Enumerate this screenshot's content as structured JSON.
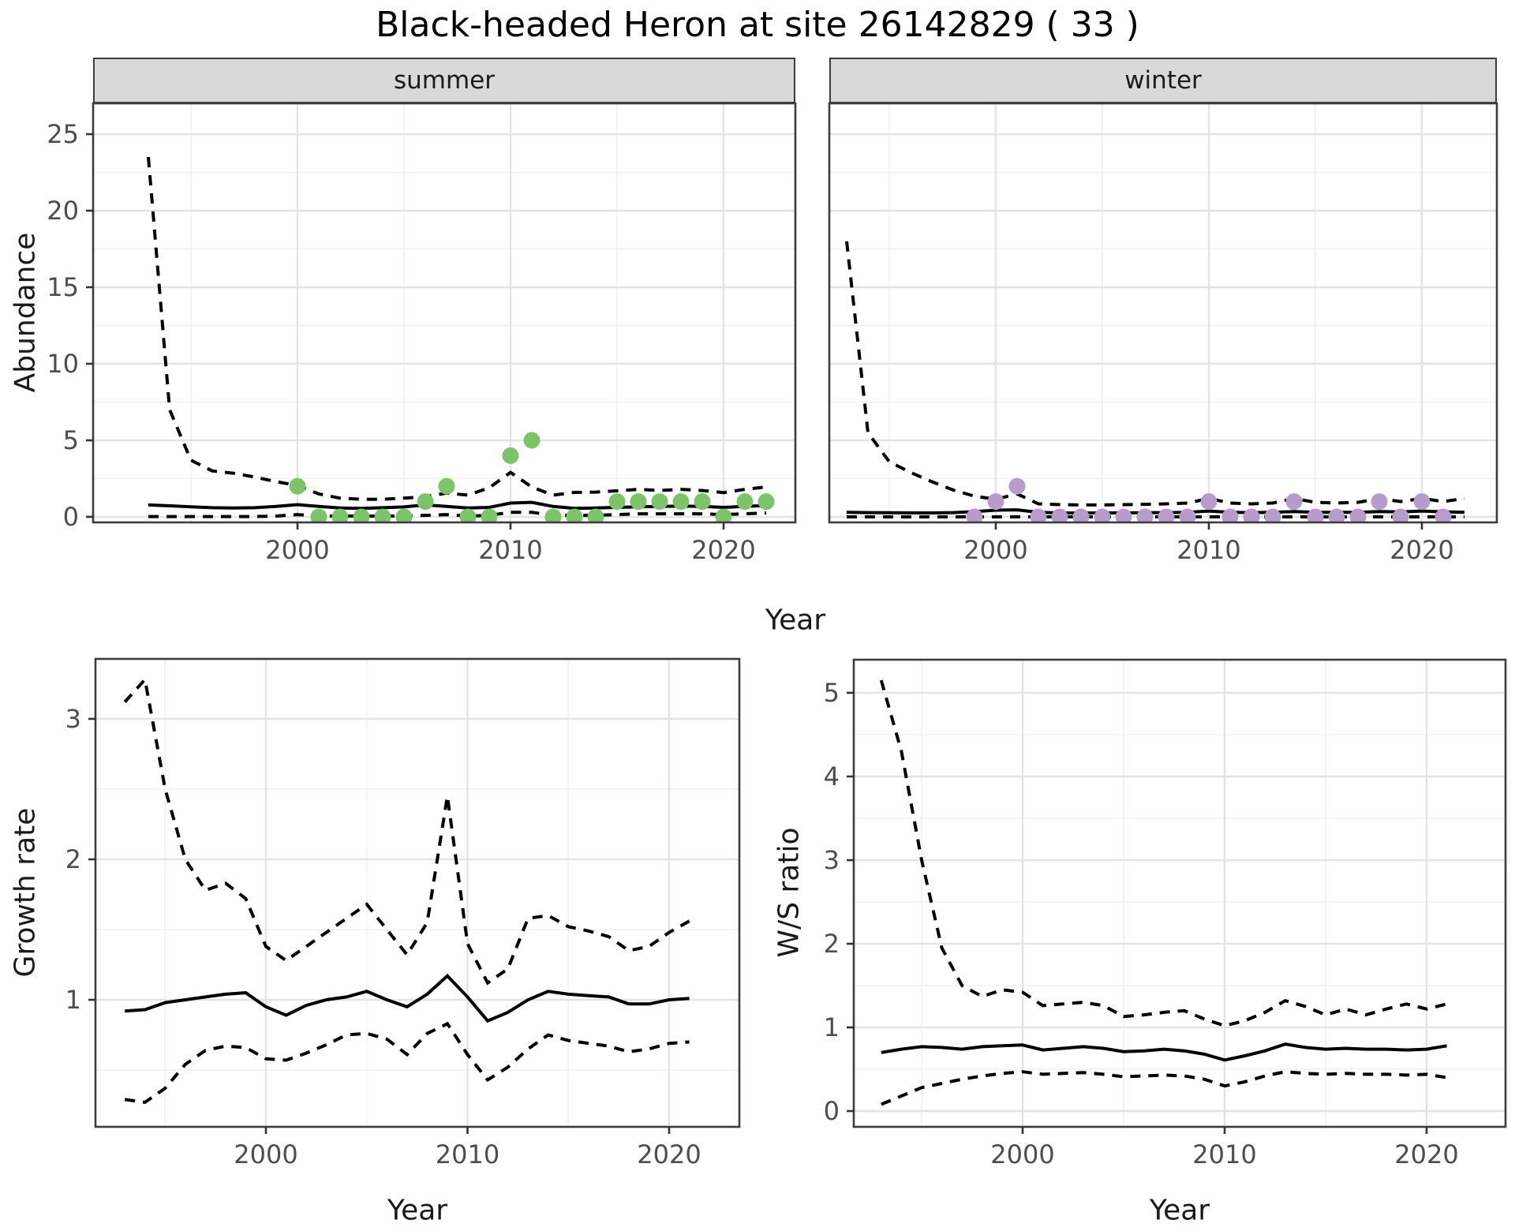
{
  "title": "Black-headed Heron at site 26142829 ( 33 )",
  "facet_labels": {
    "summer": "summer",
    "winter": "winter"
  },
  "axis_titles": {
    "abundance": "Abundance",
    "year_top": "Year",
    "growth": "Growth rate",
    "ws": "W/S ratio",
    "year_bottom_left": "Year",
    "year_bottom_right": "Year"
  },
  "colors": {
    "summer_point": "#7CC36A",
    "winter_point": "#B79CCB",
    "line": "#000000",
    "grid_major": "#E3E3E3",
    "grid_minor": "#F0F0F0",
    "strip_bg": "#D9D9D9",
    "panel_border": "#3C3C3C",
    "tick_text": "#4D4D4D"
  },
  "chart_data": [
    {
      "id": "summer",
      "type": "line",
      "title": "summer",
      "xlabel": "Year",
      "ylabel": "Abundance",
      "xlim": [
        1990.4,
        2023.4
      ],
      "ylim": [
        -0.9,
        27.0
      ],
      "grid": "on",
      "legend": "none",
      "x_major": [
        2000,
        2010,
        2020
      ],
      "x_minor": [
        1995,
        2005,
        2015
      ],
      "y_major": [
        0,
        5,
        10,
        15,
        20,
        25
      ],
      "y_minor": [
        2.5,
        7.5,
        12.5,
        17.5,
        22.5
      ],
      "x_tick_labels": [
        "2000",
        "2010",
        "2020"
      ],
      "y_tick_labels": [
        "0",
        "5",
        "10",
        "15",
        "20",
        "25"
      ],
      "years": [
        1993,
        1994,
        1995,
        1996,
        1997,
        1998,
        1999,
        2000,
        2001,
        2002,
        2003,
        2004,
        2005,
        2006,
        2007,
        2008,
        2009,
        2010,
        2011,
        2012,
        2013,
        2014,
        2015,
        2016,
        2017,
        2018,
        2019,
        2020,
        2021,
        2022
      ],
      "median": [
        0.78,
        0.72,
        0.66,
        0.6,
        0.58,
        0.6,
        0.68,
        0.8,
        0.68,
        0.58,
        0.55,
        0.6,
        0.65,
        0.78,
        0.68,
        0.58,
        0.62,
        0.9,
        0.95,
        0.68,
        0.55,
        0.58,
        0.62,
        0.66,
        0.68,
        0.7,
        0.68,
        0.62,
        0.68,
        0.74
      ],
      "upper": [
        23.5,
        7.0,
        3.7,
        3.0,
        2.85,
        2.6,
        2.3,
        2.05,
        1.5,
        1.22,
        1.15,
        1.15,
        1.22,
        1.32,
        1.55,
        1.42,
        1.9,
        2.9,
        1.95,
        1.42,
        1.6,
        1.62,
        1.7,
        1.8,
        1.72,
        1.8,
        1.72,
        1.58,
        1.8,
        1.95
      ],
      "lower": [
        0.02,
        0.02,
        0.02,
        0.02,
        0.02,
        0.02,
        0.05,
        0.15,
        0.05,
        0.05,
        0.05,
        0.05,
        0.05,
        0.1,
        0.15,
        0.05,
        0.1,
        0.3,
        0.3,
        0.1,
        0.1,
        0.1,
        0.15,
        0.2,
        0.2,
        0.2,
        0.2,
        0.15,
        0.2,
        0.25
      ],
      "points": {
        "color_key": "summer_point",
        "years": [
          2000,
          2001,
          2002,
          2003,
          2004,
          2005,
          2006,
          2007,
          2008,
          2009,
          2010,
          2011,
          2012,
          2013,
          2014,
          2015,
          2016,
          2017,
          2018,
          2019,
          2020,
          2021,
          2022
        ],
        "values": [
          2,
          0,
          0,
          0,
          0,
          0,
          1,
          2,
          0,
          0,
          4,
          5,
          0,
          0,
          0,
          1,
          1,
          1,
          1,
          1,
          0,
          1,
          1
        ]
      }
    },
    {
      "id": "winter",
      "type": "line",
      "title": "winter",
      "xlabel": "Year",
      "ylabel": "Abundance",
      "xlim": [
        1992.2,
        2023.5
      ],
      "ylim": [
        -0.9,
        27.0
      ],
      "grid": "on",
      "legend": "none",
      "x_major": [
        2000,
        2010,
        2020
      ],
      "x_minor": [
        1995,
        2005,
        2015
      ],
      "y_major": [
        0,
        5,
        10,
        15,
        20,
        25
      ],
      "y_minor": [
        2.5,
        7.5,
        12.5,
        17.5,
        22.5
      ],
      "x_tick_labels": [
        "2000",
        "2010",
        "2020"
      ],
      "y_tick_labels": [],
      "years": [
        1993,
        1994,
        1995,
        1996,
        1997,
        1998,
        1999,
        2000,
        2001,
        2002,
        2003,
        2004,
        2005,
        2006,
        2007,
        2008,
        2009,
        2010,
        2011,
        2012,
        2013,
        2014,
        2015,
        2016,
        2017,
        2018,
        2019,
        2020,
        2021,
        2022
      ],
      "median": [
        0.3,
        0.28,
        0.27,
        0.26,
        0.26,
        0.28,
        0.34,
        0.44,
        0.46,
        0.3,
        0.26,
        0.25,
        0.26,
        0.26,
        0.27,
        0.28,
        0.3,
        0.38,
        0.3,
        0.28,
        0.3,
        0.35,
        0.3,
        0.3,
        0.3,
        0.35,
        0.32,
        0.38,
        0.33,
        0.3
      ],
      "upper": [
        18.0,
        5.5,
        3.6,
        2.9,
        2.3,
        1.75,
        1.35,
        1.15,
        1.5,
        0.85,
        0.8,
        0.78,
        0.78,
        0.8,
        0.82,
        0.85,
        0.9,
        1.2,
        0.9,
        0.85,
        0.9,
        1.2,
        0.95,
        0.9,
        0.95,
        1.2,
        1.0,
        1.2,
        1.0,
        1.2
      ],
      "lower": [
        0,
        0,
        0,
        0,
        0,
        0,
        0,
        0,
        0,
        0,
        0,
        0,
        0,
        0,
        0,
        0,
        0,
        0,
        0,
        0,
        0,
        0,
        0,
        0,
        0,
        0,
        0,
        0,
        0,
        0
      ],
      "points": {
        "color_key": "winter_point",
        "years": [
          1999,
          2000,
          2001,
          2002,
          2003,
          2004,
          2005,
          2006,
          2007,
          2008,
          2009,
          2010,
          2011,
          2012,
          2013,
          2014,
          2015,
          2016,
          2017,
          2018,
          2019,
          2020,
          2021
        ],
        "values": [
          0,
          1,
          2,
          0,
          0,
          0,
          0,
          0,
          0,
          0,
          0,
          1,
          0,
          0,
          0,
          1,
          0,
          0,
          0,
          1,
          0,
          1,
          0
        ]
      }
    },
    {
      "id": "growth",
      "type": "line",
      "title": "",
      "xlabel": "Year",
      "ylabel": "Growth rate",
      "xlim": [
        1991.5,
        2023.5
      ],
      "ylim": [
        0.1,
        3.43
      ],
      "grid": "on",
      "legend": "none",
      "x_major": [
        2000,
        2010,
        2020
      ],
      "x_minor": [
        1995,
        2005,
        2015
      ],
      "y_major": [
        1,
        2,
        3
      ],
      "y_minor": [
        0.5,
        1.5,
        2.5
      ],
      "x_tick_labels": [
        "2000",
        "2010",
        "2020"
      ],
      "y_tick_labels": [
        "1",
        "2",
        "3"
      ],
      "years": [
        1993,
        1994,
        1995,
        1996,
        1997,
        1998,
        1999,
        2000,
        2001,
        2002,
        2003,
        2004,
        2005,
        2006,
        2007,
        2008,
        2009,
        2010,
        2011,
        2012,
        2013,
        2014,
        2015,
        2016,
        2017,
        2018,
        2019,
        2020,
        2021
      ],
      "median": [
        0.92,
        0.93,
        0.98,
        1.0,
        1.02,
        1.04,
        1.05,
        0.95,
        0.89,
        0.96,
        1.0,
        1.02,
        1.06,
        1.0,
        0.95,
        1.04,
        1.17,
        1.02,
        0.85,
        0.91,
        1.0,
        1.06,
        1.04,
        1.03,
        1.02,
        0.97,
        0.97,
        1.0,
        1.01
      ],
      "upper": [
        3.12,
        3.28,
        2.5,
        2.0,
        1.78,
        1.83,
        1.72,
        1.38,
        1.28,
        1.38,
        1.48,
        1.58,
        1.68,
        1.5,
        1.32,
        1.55,
        2.45,
        1.4,
        1.12,
        1.22,
        1.58,
        1.6,
        1.52,
        1.49,
        1.45,
        1.35,
        1.38,
        1.48,
        1.56
      ],
      "lower": [
        0.29,
        0.27,
        0.37,
        0.54,
        0.64,
        0.67,
        0.66,
        0.58,
        0.57,
        0.62,
        0.68,
        0.75,
        0.76,
        0.72,
        0.61,
        0.76,
        0.83,
        0.61,
        0.43,
        0.52,
        0.65,
        0.75,
        0.71,
        0.69,
        0.67,
        0.63,
        0.65,
        0.69,
        0.7
      ],
      "points": {
        "color_key": "",
        "years": [],
        "values": []
      }
    },
    {
      "id": "ws",
      "type": "line",
      "title": "",
      "xlabel": "Year",
      "ylabel": "W/S ratio",
      "xlim": [
        1991.6,
        2023.9
      ],
      "ylim": [
        -0.17,
        5.4
      ],
      "grid": "on",
      "legend": "none",
      "x_major": [
        2000,
        2010,
        2020
      ],
      "x_minor": [
        1995,
        2005,
        2015
      ],
      "y_major": [
        0,
        1,
        2,
        3,
        4,
        5
      ],
      "y_minor": [
        0.5,
        1.5,
        2.5,
        3.5,
        4.5
      ],
      "x_tick_labels": [
        "2000",
        "2010",
        "2020"
      ],
      "y_tick_labels": [
        "0",
        "1",
        "2",
        "3",
        "4",
        "5"
      ],
      "years": [
        1993,
        1994,
        1995,
        1996,
        1997,
        1998,
        1999,
        2000,
        2001,
        2002,
        2003,
        2004,
        2005,
        2006,
        2007,
        2008,
        2009,
        2010,
        2011,
        2012,
        2013,
        2014,
        2015,
        2016,
        2017,
        2018,
        2019,
        2020,
        2021
      ],
      "median": [
        0.7,
        0.74,
        0.77,
        0.76,
        0.74,
        0.77,
        0.78,
        0.79,
        0.73,
        0.75,
        0.77,
        0.75,
        0.71,
        0.72,
        0.74,
        0.72,
        0.68,
        0.61,
        0.66,
        0.72,
        0.8,
        0.76,
        0.74,
        0.75,
        0.74,
        0.74,
        0.73,
        0.74,
        0.78
      ],
      "upper": [
        5.15,
        4.3,
        3.0,
        1.95,
        1.5,
        1.37,
        1.45,
        1.42,
        1.26,
        1.28,
        1.3,
        1.26,
        1.13,
        1.15,
        1.18,
        1.2,
        1.1,
        1.02,
        1.08,
        1.18,
        1.32,
        1.25,
        1.15,
        1.22,
        1.15,
        1.22,
        1.28,
        1.22,
        1.28
      ],
      "lower": [
        0.08,
        0.18,
        0.28,
        0.33,
        0.38,
        0.42,
        0.45,
        0.47,
        0.44,
        0.45,
        0.46,
        0.44,
        0.41,
        0.42,
        0.43,
        0.42,
        0.38,
        0.3,
        0.35,
        0.42,
        0.47,
        0.45,
        0.44,
        0.45,
        0.44,
        0.44,
        0.43,
        0.44,
        0.4
      ],
      "points": {
        "color_key": "",
        "years": [],
        "values": []
      }
    }
  ]
}
